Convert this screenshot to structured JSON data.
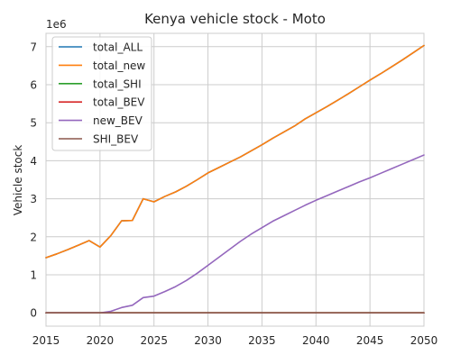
{
  "chart_data": {
    "type": "line",
    "title": "Kenya vehicle stock - Moto",
    "xlabel": "",
    "ylabel": "Vehicle stock",
    "y_offset_label": "1e6",
    "xlim": [
      2015,
      2050
    ],
    "ylim": [
      -0.35,
      7.35
    ],
    "x_ticks": [
      2015,
      2020,
      2025,
      2030,
      2035,
      2040,
      2045,
      2050
    ],
    "x_tick_labels": [
      "2015",
      "2020",
      "2025",
      "2030",
      "2035",
      "2040",
      "2045",
      "2050"
    ],
    "y_ticks": [
      0,
      1,
      2,
      3,
      4,
      5,
      6,
      7
    ],
    "y_tick_labels": [
      "0",
      "1",
      "2",
      "3",
      "4",
      "5",
      "6",
      "7"
    ],
    "grid": true,
    "legend_position": "top-left",
    "x": [
      2015,
      2016,
      2017,
      2018,
      2019,
      2020,
      2021,
      2022,
      2023,
      2024,
      2025,
      2026,
      2027,
      2028,
      2029,
      2030,
      2031,
      2032,
      2033,
      2034,
      2035,
      2036,
      2037,
      2038,
      2039,
      2040,
      2041,
      2042,
      2043,
      2044,
      2045,
      2046,
      2047,
      2048,
      2049,
      2050
    ],
    "series": [
      {
        "name": "total_ALL",
        "color": "#1f77b4",
        "values": [
          1.45,
          1.55,
          1.66,
          1.78,
          1.9,
          1.73,
          2.03,
          2.42,
          2.43,
          3.0,
          2.92,
          3.06,
          3.18,
          3.33,
          3.5,
          3.68,
          3.82,
          3.96,
          4.1,
          4.26,
          4.42,
          4.59,
          4.75,
          4.91,
          5.1,
          5.26,
          5.42,
          5.59,
          5.76,
          5.94,
          6.12,
          6.29,
          6.47,
          6.65,
          6.84,
          7.03
        ]
      },
      {
        "name": "total_new",
        "color": "#ff7f0e",
        "values": [
          1.45,
          1.55,
          1.66,
          1.78,
          1.9,
          1.73,
          2.03,
          2.42,
          2.43,
          3.0,
          2.92,
          3.06,
          3.18,
          3.33,
          3.5,
          3.68,
          3.82,
          3.96,
          4.1,
          4.26,
          4.42,
          4.59,
          4.75,
          4.91,
          5.1,
          5.26,
          5.42,
          5.59,
          5.76,
          5.94,
          6.12,
          6.29,
          6.47,
          6.65,
          6.84,
          7.03
        ]
      },
      {
        "name": "total_SHI",
        "color": "#2ca02c",
        "values": [
          0,
          0,
          0,
          0,
          0,
          0,
          0,
          0,
          0,
          0,
          0,
          0,
          0,
          0,
          0,
          0,
          0,
          0,
          0,
          0,
          0,
          0,
          0,
          0,
          0,
          0,
          0,
          0,
          0,
          0,
          0,
          0,
          0,
          0,
          0,
          0
        ]
      },
      {
        "name": "total_BEV",
        "color": "#d62728",
        "values": [
          0,
          0,
          0,
          0,
          0,
          0,
          0,
          0,
          0,
          0,
          0,
          0,
          0,
          0,
          0,
          0,
          0,
          0,
          0,
          0,
          0,
          0,
          0,
          0,
          0,
          0,
          0,
          0,
          0,
          0,
          0,
          0,
          0,
          0,
          0,
          0
        ]
      },
      {
        "name": "new_BEV",
        "color": "#9467bd",
        "values": [
          0,
          0,
          0,
          0,
          0,
          0,
          0.04,
          0.14,
          0.2,
          0.4,
          0.44,
          0.56,
          0.69,
          0.85,
          1.04,
          1.25,
          1.46,
          1.67,
          1.88,
          2.07,
          2.24,
          2.41,
          2.55,
          2.69,
          2.83,
          2.96,
          3.08,
          3.2,
          3.32,
          3.44,
          3.55,
          3.67,
          3.79,
          3.91,
          4.03,
          4.15
        ]
      },
      {
        "name": "SHI_BEV",
        "color": "#8c564b",
        "values": [
          0,
          0,
          0,
          0,
          0,
          0,
          0,
          0,
          0,
          0,
          0,
          0,
          0,
          0,
          0,
          0,
          0,
          0,
          0,
          0,
          0,
          0,
          0,
          0,
          0,
          0,
          0,
          0,
          0,
          0,
          0,
          0,
          0,
          0,
          0,
          0
        ]
      }
    ]
  }
}
